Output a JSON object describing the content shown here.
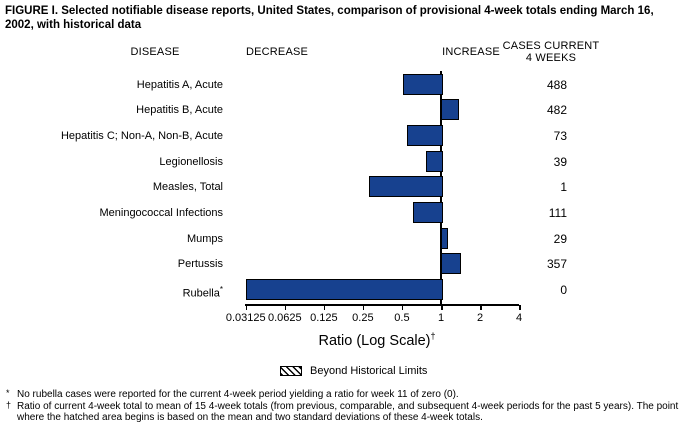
{
  "title": "FIGURE I. Selected notifiable disease reports, United States, comparison of provisional 4-week totals ending March 16, 2002, with historical data",
  "columns": {
    "disease": "DISEASE",
    "decrease": "DECREASE",
    "increase": "INCREASE",
    "cases_line1": "CASES CURRENT",
    "cases_line2": "4 WEEKS"
  },
  "chart_data": {
    "type": "bar",
    "orientation": "horizontal",
    "scale": "log2",
    "baseline_ratio": 1,
    "bar_color": "#17418f",
    "axis": {
      "label": "Ratio (Log Scale)",
      "label_superscript": "†",
      "ticks": [
        0.03125,
        0.0625,
        0.125,
        0.25,
        0.5,
        1,
        2,
        4
      ],
      "tick_labels": [
        "0.03125",
        "0.0625",
        "0.125",
        "0.25",
        "0.5",
        "1",
        "2",
        "4"
      ],
      "range": [
        0.03125,
        4
      ]
    },
    "rows": [
      {
        "label": "Hepatitis A, Acute",
        "label_superscript": "",
        "ratio": 0.51,
        "cases": "488"
      },
      {
        "label": "Hepatitis B, Acute",
        "label_superscript": "",
        "ratio": 1.32,
        "cases": "482"
      },
      {
        "label": "Hepatitis C; Non-A, Non-B, Acute",
        "label_superscript": "",
        "ratio": 0.55,
        "cases": "73"
      },
      {
        "label": "Legionellosis",
        "label_superscript": "",
        "ratio": 0.77,
        "cases": "39"
      },
      {
        "label": "Measles, Total",
        "label_superscript": "",
        "ratio": 0.28,
        "cases": "1"
      },
      {
        "label": "Meningococcal Infections",
        "label_superscript": "",
        "ratio": 0.61,
        "cases": "111"
      },
      {
        "label": "Mumps",
        "label_superscript": "",
        "ratio": 1.1,
        "cases": "29"
      },
      {
        "label": "Pertussis",
        "label_superscript": "",
        "ratio": 1.38,
        "cases": "357"
      },
      {
        "label": "Rubella",
        "label_superscript": "*",
        "ratio": 0,
        "cases": "0"
      }
    ],
    "legend": {
      "swatch": "diagonal-hatch",
      "label": "Beyond Historical Limits"
    }
  },
  "footnotes": [
    {
      "marker": "*",
      "text": "No rubella cases were reported for the current 4-week period yielding a ratio for week 11 of zero (0)."
    },
    {
      "marker": "†",
      "text": "Ratio of current 4-week total to mean of 15 4-week totals (from previous, comparable, and subsequent 4-week periods for the past 5 years). The point where the hatched area begins is based on the mean and two standard deviations of these 4-week totals."
    }
  ]
}
